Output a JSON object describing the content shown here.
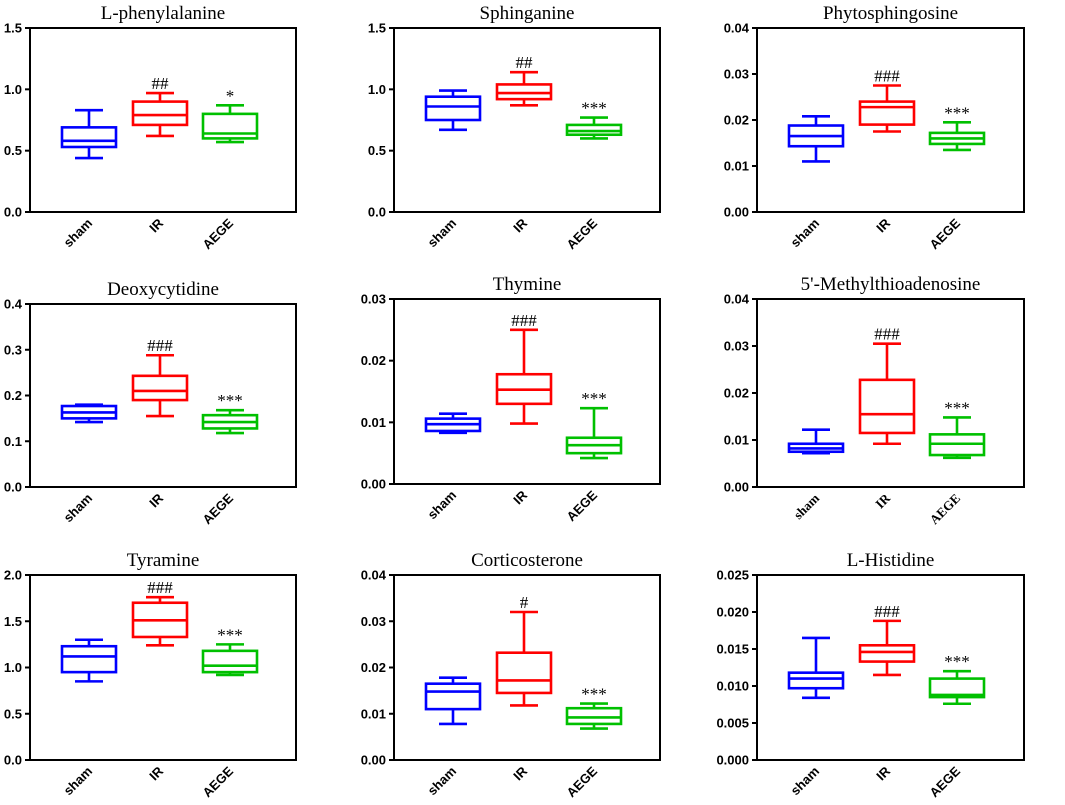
{
  "chart_data": [
    {
      "type": "boxplot",
      "title": "L-phenylalanine",
      "categories": [
        "sham",
        "IR",
        "AEGE"
      ],
      "colors": [
        "#0000ff",
        "#ff0000",
        "#00c000"
      ],
      "ylim": [
        0,
        1.5
      ],
      "yticks": [
        "0.0",
        "0.5",
        "1.0",
        "1.5"
      ],
      "boxes": [
        {
          "min": 0.44,
          "q1": 0.53,
          "median": 0.58,
          "q3": 0.69,
          "max": 0.83
        },
        {
          "min": 0.62,
          "q1": 0.71,
          "median": 0.79,
          "q3": 0.9,
          "max": 0.97
        },
        {
          "min": 0.57,
          "q1": 0.6,
          "median": 0.64,
          "q3": 0.8,
          "max": 0.87
        }
      ],
      "annotations": [
        "",
        "##",
        "*"
      ]
    },
    {
      "type": "boxplot",
      "title": "Sphinganine",
      "categories": [
        "sham",
        "IR",
        "AEGE"
      ],
      "colors": [
        "#0000ff",
        "#ff0000",
        "#00c000"
      ],
      "ylim": [
        0,
        1.5
      ],
      "yticks": [
        "0.0",
        "0.5",
        "1.0",
        "1.5"
      ],
      "boxes": [
        {
          "min": 0.67,
          "q1": 0.75,
          "median": 0.86,
          "q3": 0.94,
          "max": 0.99
        },
        {
          "min": 0.87,
          "q1": 0.92,
          "median": 0.97,
          "q3": 1.04,
          "max": 1.14
        },
        {
          "min": 0.6,
          "q1": 0.63,
          "median": 0.66,
          "q3": 0.71,
          "max": 0.77
        }
      ],
      "annotations": [
        "",
        "##",
        "***"
      ]
    },
    {
      "type": "boxplot",
      "title": "Phytosphingosine",
      "categories": [
        "sham",
        "IR",
        "AEGE"
      ],
      "colors": [
        "#0000ff",
        "#ff0000",
        "#00c000"
      ],
      "ylim": [
        0,
        0.04
      ],
      "yticks": [
        "0.00",
        "0.01",
        "0.02",
        "0.03",
        "0.04"
      ],
      "boxes": [
        {
          "min": 0.011,
          "q1": 0.0143,
          "median": 0.0165,
          "q3": 0.0188,
          "max": 0.0208
        },
        {
          "min": 0.0175,
          "q1": 0.019,
          "median": 0.0228,
          "q3": 0.024,
          "max": 0.0275
        },
        {
          "min": 0.0135,
          "q1": 0.0148,
          "median": 0.016,
          "q3": 0.0172,
          "max": 0.0195
        }
      ],
      "annotations": [
        "",
        "###",
        "***"
      ]
    },
    {
      "type": "boxplot",
      "title": "Deoxycytidine",
      "categories": [
        "sham",
        "IR",
        "AEGE"
      ],
      "colors": [
        "#0000ff",
        "#ff0000",
        "#00c000"
      ],
      "ylim": [
        0,
        0.4
      ],
      "yticks": [
        "0.0",
        "0.1",
        "0.2",
        "0.3",
        "0.4"
      ],
      "boxes": [
        {
          "min": 0.142,
          "q1": 0.15,
          "median": 0.163,
          "q3": 0.177,
          "max": 0.18
        },
        {
          "min": 0.155,
          "q1": 0.19,
          "median": 0.21,
          "q3": 0.243,
          "max": 0.288
        },
        {
          "min": 0.118,
          "q1": 0.128,
          "median": 0.142,
          "q3": 0.157,
          "max": 0.168
        }
      ],
      "annotations": [
        "",
        "###",
        "***"
      ]
    },
    {
      "type": "boxplot",
      "title": "Thymine",
      "categories": [
        "sham",
        "IR",
        "AEGE"
      ],
      "colors": [
        "#0000ff",
        "#ff0000",
        "#00c000"
      ],
      "ylim": [
        0,
        0.03
      ],
      "yticks": [
        "0.00",
        "0.01",
        "0.02",
        "0.03"
      ],
      "boxes": [
        {
          "min": 0.0083,
          "q1": 0.0086,
          "median": 0.0097,
          "q3": 0.0106,
          "max": 0.0114
        },
        {
          "min": 0.0098,
          "q1": 0.013,
          "median": 0.0153,
          "q3": 0.0178,
          "max": 0.025
        },
        {
          "min": 0.0042,
          "q1": 0.005,
          "median": 0.0063,
          "q3": 0.0075,
          "max": 0.0123
        }
      ],
      "annotations": [
        "",
        "###",
        "***"
      ]
    },
    {
      "type": "boxplot",
      "title": "5'-Methylthioadenosine",
      "categories": [
        "sham",
        "IR",
        "AEGE"
      ],
      "colors": [
        "#0000ff",
        "#ff0000",
        "#00c000"
      ],
      "ylim": [
        0,
        0.04
      ],
      "yticks": [
        "0.00",
        "0.01",
        "0.02",
        "0.03",
        "0.04"
      ],
      "boxes": [
        {
          "min": 0.0072,
          "q1": 0.0075,
          "median": 0.0082,
          "q3": 0.0092,
          "max": 0.0122
        },
        {
          "min": 0.0092,
          "q1": 0.0115,
          "median": 0.0155,
          "q3": 0.0228,
          "max": 0.0305
        },
        {
          "min": 0.0062,
          "q1": 0.0068,
          "median": 0.0092,
          "q3": 0.0112,
          "max": 0.0148
        }
      ],
      "annotations": [
        "",
        "###",
        "***"
      ]
    },
    {
      "type": "boxplot",
      "title": "Tyramine",
      "categories": [
        "sham",
        "IR",
        "AEGE"
      ],
      "colors": [
        "#0000ff",
        "#ff0000",
        "#00c000"
      ],
      "ylim": [
        0,
        2.0
      ],
      "yticks": [
        "0.0",
        "0.5",
        "1.0",
        "1.5",
        "2.0"
      ],
      "boxes": [
        {
          "min": 0.85,
          "q1": 0.95,
          "median": 1.12,
          "q3": 1.23,
          "max": 1.3
        },
        {
          "min": 1.24,
          "q1": 1.33,
          "median": 1.51,
          "q3": 1.7,
          "max": 1.76
        },
        {
          "min": 0.92,
          "q1": 0.95,
          "median": 1.02,
          "q3": 1.18,
          "max": 1.25
        }
      ],
      "annotations": [
        "",
        "###",
        "***"
      ]
    },
    {
      "type": "boxplot",
      "title": "Corticosterone",
      "categories": [
        "sham",
        "IR",
        "AEGE"
      ],
      "colors": [
        "#0000ff",
        "#ff0000",
        "#00c000"
      ],
      "ylim": [
        0,
        0.04
      ],
      "yticks": [
        "0.00",
        "0.01",
        "0.02",
        "0.03",
        "0.04"
      ],
      "boxes": [
        {
          "min": 0.0078,
          "q1": 0.011,
          "median": 0.0148,
          "q3": 0.0165,
          "max": 0.0178
        },
        {
          "min": 0.0118,
          "q1": 0.0145,
          "median": 0.0172,
          "q3": 0.0232,
          "max": 0.032
        },
        {
          "min": 0.0068,
          "q1": 0.0078,
          "median": 0.0092,
          "q3": 0.0112,
          "max": 0.0122
        }
      ],
      "annotations": [
        "",
        "#",
        "***"
      ]
    },
    {
      "type": "boxplot",
      "title": "L-Histidine",
      "categories": [
        "sham",
        "IR",
        "AEGE"
      ],
      "colors": [
        "#0000ff",
        "#ff0000",
        "#00c000"
      ],
      "ylim": [
        0,
        0.025
      ],
      "yticks": [
        "0.000",
        "0.005",
        "0.010",
        "0.015",
        "0.020",
        "0.025"
      ],
      "boxes": [
        {
          "min": 0.0084,
          "q1": 0.0097,
          "median": 0.011,
          "q3": 0.0118,
          "max": 0.0165
        },
        {
          "min": 0.0115,
          "q1": 0.0133,
          "median": 0.0146,
          "q3": 0.0155,
          "max": 0.0188
        },
        {
          "min": 0.0076,
          "q1": 0.0085,
          "median": 0.0088,
          "q3": 0.011,
          "max": 0.012
        }
      ],
      "annotations": [
        "",
        "###",
        "***"
      ]
    }
  ]
}
